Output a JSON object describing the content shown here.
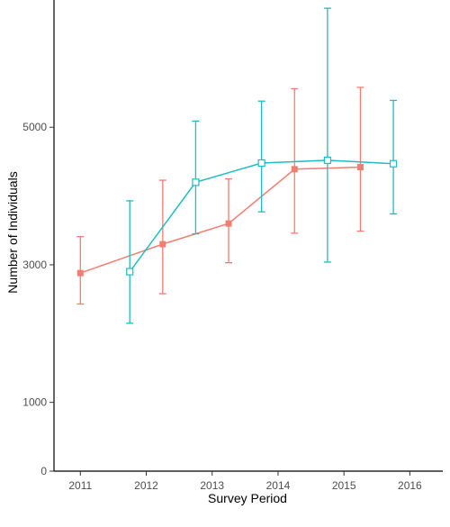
{
  "chart_data": {
    "type": "line",
    "xlabel": "Survey Period",
    "ylabel": "Number of Individuals",
    "x_ticks": [
      "2011",
      "2012",
      "2013",
      "2014",
      "2015",
      "2016"
    ],
    "y_ticks": [
      0,
      1000,
      3000,
      5000
    ],
    "ylim": [
      0,
      6850
    ],
    "xlim": [
      2010.6,
      2016.5
    ],
    "grid": false,
    "legend": "none",
    "series": [
      {
        "color": "#F07E71",
        "marker": "filled-square",
        "x": [
          2011.0,
          2012.25,
          2013.25,
          2014.25,
          2015.25
        ],
        "y": [
          2880,
          3300,
          3600,
          4390,
          4420
        ],
        "err_low": [
          2430,
          2580,
          3030,
          3460,
          3490
        ],
        "err_high": [
          3410,
          4230,
          4250,
          5560,
          5580
        ]
      },
      {
        "color": "#1DBDC3",
        "marker": "open-square",
        "x": [
          2011.75,
          2012.75,
          2013.75,
          2014.75,
          2015.75
        ],
        "y": [
          2900,
          4200,
          4480,
          4520,
          4470
        ],
        "err_low": [
          2150,
          3450,
          3770,
          3040,
          3740
        ],
        "err_high": [
          3930,
          5090,
          5380,
          6730,
          5390
        ]
      }
    ]
  }
}
